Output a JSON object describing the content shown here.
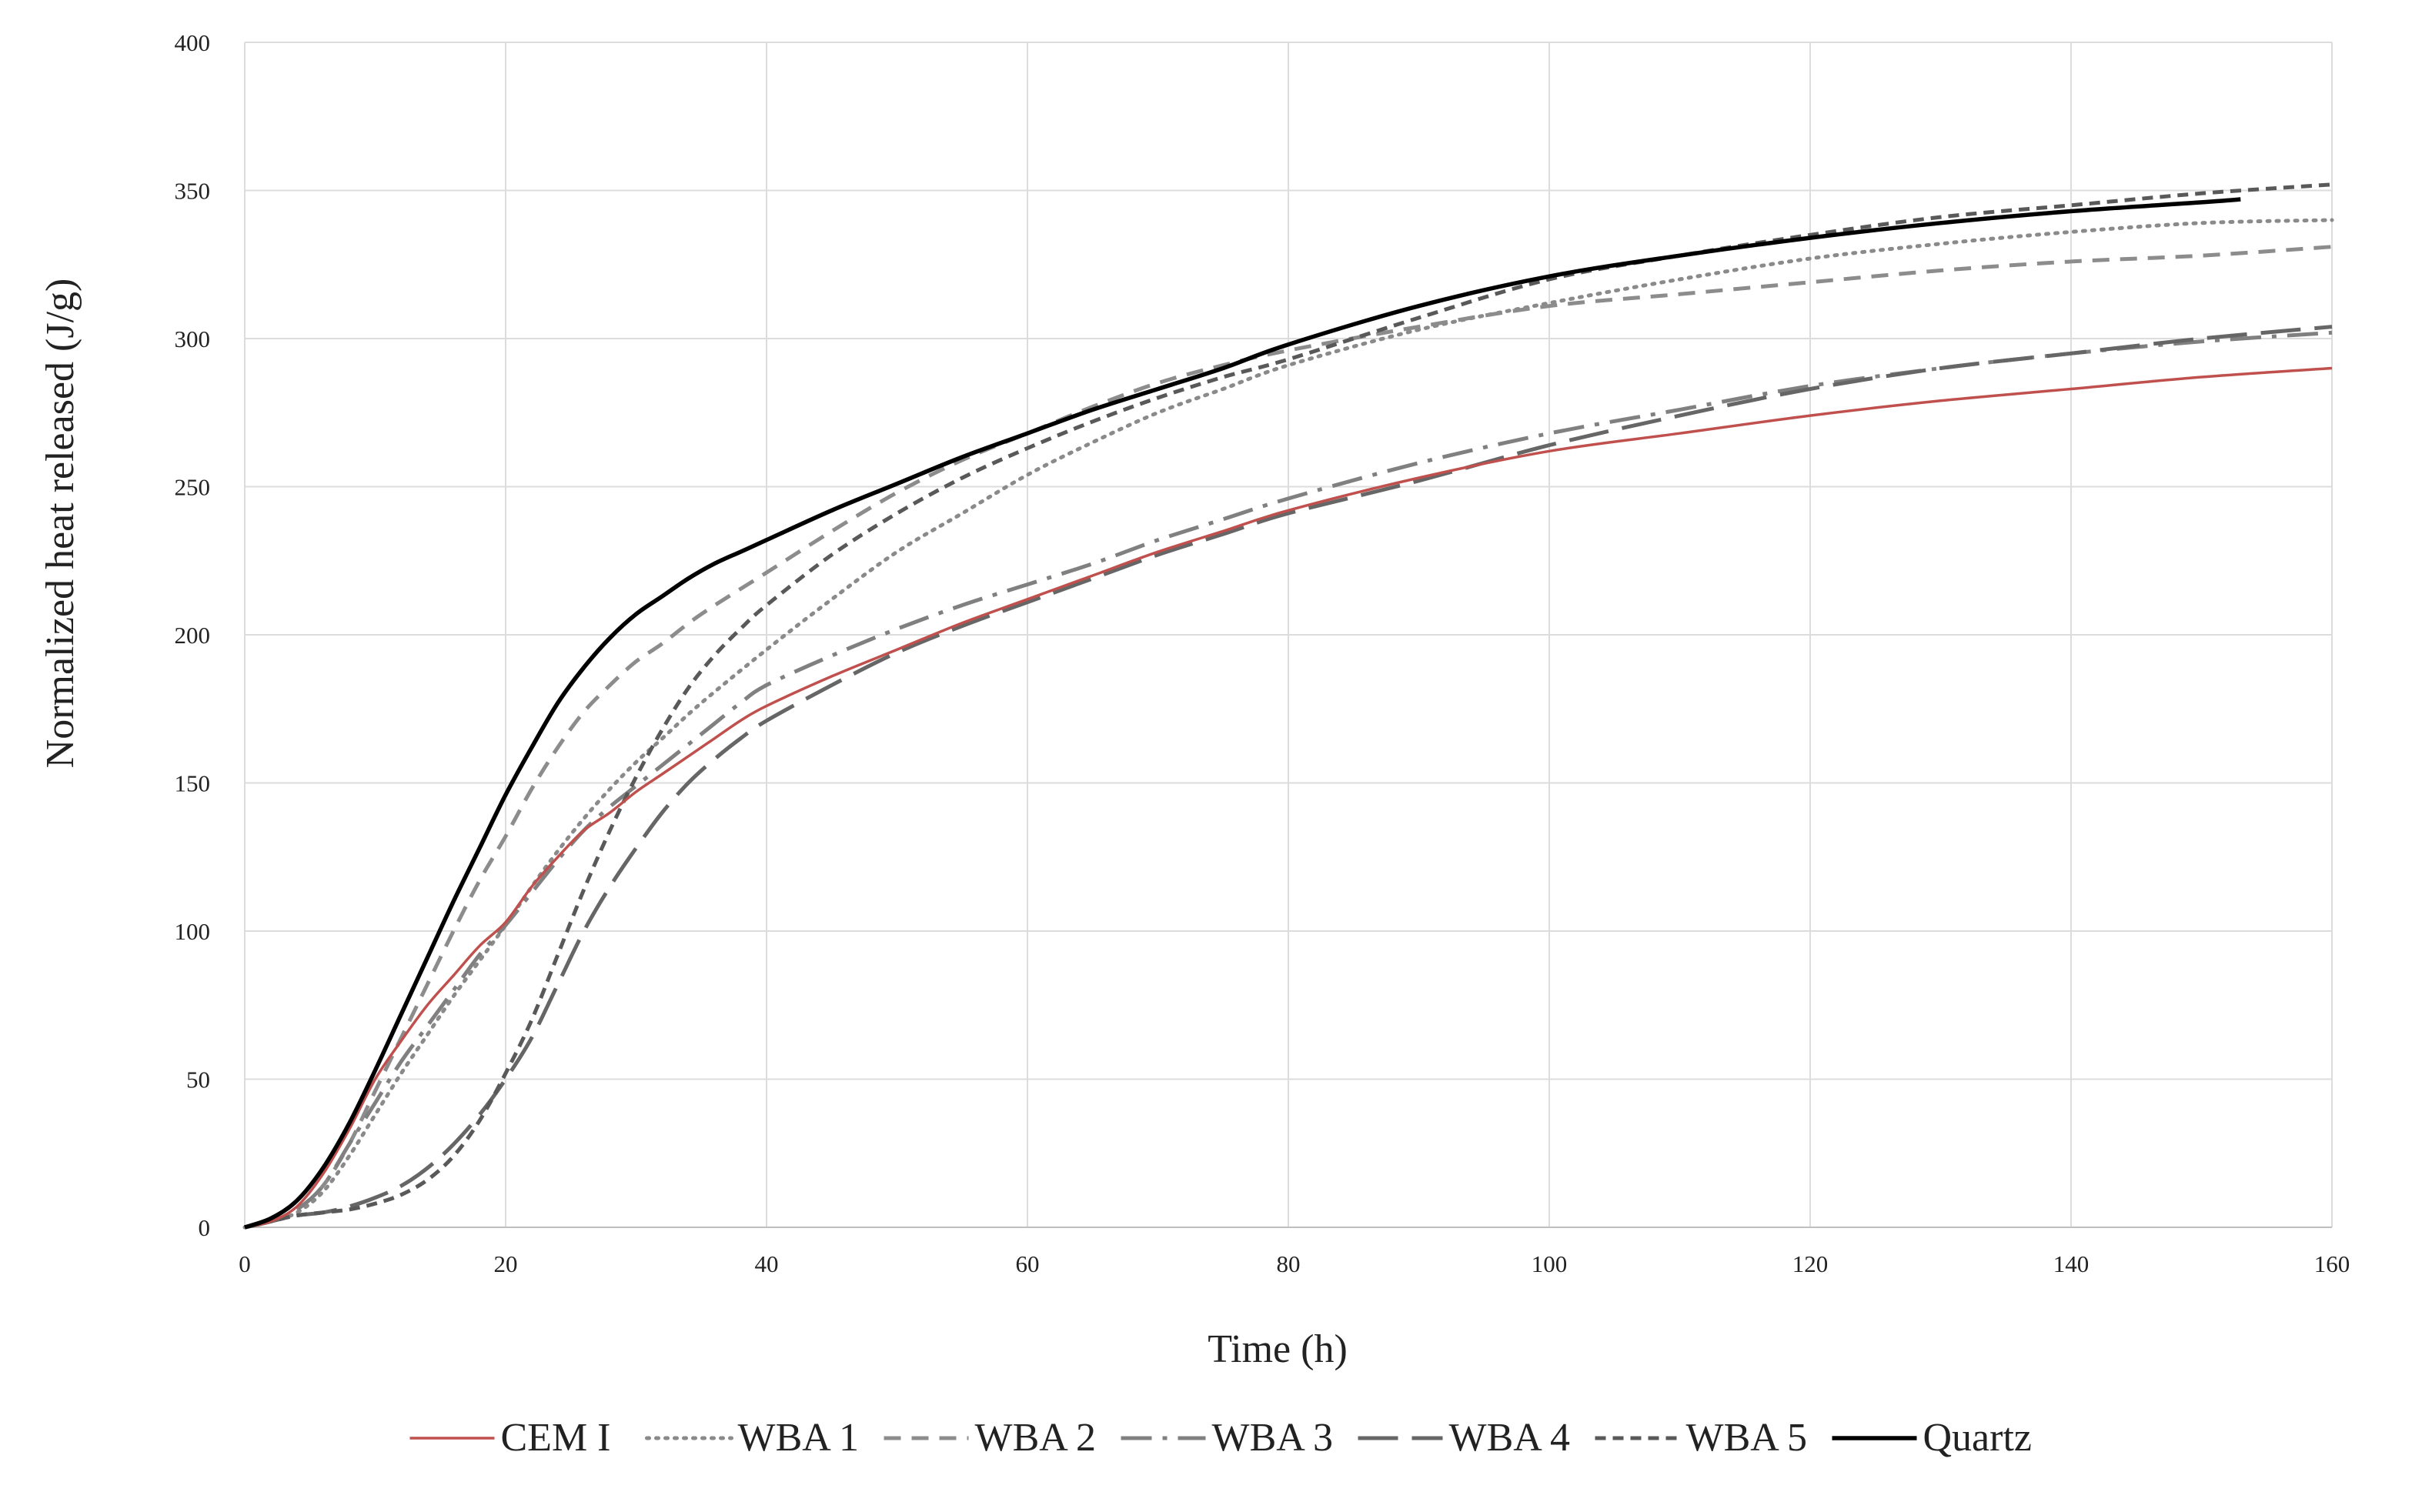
{
  "chart_data": {
    "type": "line",
    "title": "",
    "xlabel": "Time (h)",
    "ylabel": "Normalized heat released  (J/g)",
    "xlim": [
      0,
      160
    ],
    "ylim": [
      0,
      400
    ],
    "x_ticks": [
      "0",
      "20",
      "40",
      "60",
      "80",
      "100",
      "120",
      "140",
      "160"
    ],
    "y_ticks": [
      "0",
      "50",
      "100",
      "150",
      "200",
      "250",
      "300",
      "350",
      "400"
    ],
    "grid": true,
    "legend_position": "bottom",
    "series": [
      {
        "name": "CEM I",
        "color": "#c0504d",
        "dash": "solid",
        "points": [
          [
            0,
            0
          ],
          [
            2,
            2
          ],
          [
            4,
            7
          ],
          [
            6,
            18
          ],
          [
            8,
            33
          ],
          [
            10,
            50
          ],
          [
            12,
            63
          ],
          [
            14,
            75
          ],
          [
            16,
            85
          ],
          [
            18,
            95
          ],
          [
            20,
            103
          ],
          [
            22,
            115
          ],
          [
            24,
            125
          ],
          [
            26,
            134
          ],
          [
            28,
            140
          ],
          [
            30,
            147
          ],
          [
            32,
            153
          ],
          [
            34,
            159
          ],
          [
            36,
            165
          ],
          [
            38,
            171
          ],
          [
            40,
            176
          ],
          [
            45,
            186
          ],
          [
            50,
            195
          ],
          [
            55,
            204
          ],
          [
            60,
            212
          ],
          [
            65,
            220
          ],
          [
            70,
            228
          ],
          [
            75,
            235
          ],
          [
            80,
            242
          ],
          [
            90,
            253
          ],
          [
            100,
            262
          ],
          [
            110,
            268
          ],
          [
            120,
            274
          ],
          [
            130,
            279
          ],
          [
            140,
            283
          ],
          [
            150,
            287
          ],
          [
            160,
            290
          ]
        ]
      },
      {
        "name": "WBA 1",
        "color": "#8a8a8a",
        "dash": "dotted",
        "points": [
          [
            0,
            0
          ],
          [
            2,
            2
          ],
          [
            4,
            5
          ],
          [
            6,
            12
          ],
          [
            8,
            24
          ],
          [
            10,
            38
          ],
          [
            12,
            52
          ],
          [
            14,
            65
          ],
          [
            16,
            78
          ],
          [
            18,
            90
          ],
          [
            20,
            102
          ],
          [
            22,
            115
          ],
          [
            24,
            127
          ],
          [
            26,
            138
          ],
          [
            28,
            148
          ],
          [
            30,
            157
          ],
          [
            32,
            165
          ],
          [
            35,
            177
          ],
          [
            40,
            195
          ],
          [
            45,
            212
          ],
          [
            50,
            228
          ],
          [
            55,
            241
          ],
          [
            60,
            254
          ],
          [
            65,
            265
          ],
          [
            70,
            275
          ],
          [
            75,
            283
          ],
          [
            80,
            291
          ],
          [
            90,
            303
          ],
          [
            100,
            312
          ],
          [
            110,
            320
          ],
          [
            120,
            327
          ],
          [
            130,
            332
          ],
          [
            140,
            336
          ],
          [
            150,
            339
          ],
          [
            160,
            340
          ]
        ]
      },
      {
        "name": "WBA 2",
        "color": "#8c8c8c",
        "dash": "dash",
        "points": [
          [
            0,
            0
          ],
          [
            2,
            2
          ],
          [
            4,
            6
          ],
          [
            6,
            14
          ],
          [
            8,
            28
          ],
          [
            10,
            46
          ],
          [
            12,
            64
          ],
          [
            14,
            82
          ],
          [
            16,
            100
          ],
          [
            18,
            117
          ],
          [
            20,
            132
          ],
          [
            22,
            148
          ],
          [
            24,
            162
          ],
          [
            26,
            174
          ],
          [
            28,
            183
          ],
          [
            30,
            191
          ],
          [
            32,
            197
          ],
          [
            35,
            207
          ],
          [
            40,
            221
          ],
          [
            45,
            235
          ],
          [
            50,
            248
          ],
          [
            55,
            259
          ],
          [
            60,
            268
          ],
          [
            65,
            277
          ],
          [
            70,
            285
          ],
          [
            75,
            291
          ],
          [
            80,
            296
          ],
          [
            90,
            304
          ],
          [
            100,
            311
          ],
          [
            110,
            315
          ],
          [
            120,
            319
          ],
          [
            130,
            323
          ],
          [
            140,
            326
          ],
          [
            150,
            328
          ],
          [
            160,
            331
          ]
        ]
      },
      {
        "name": "WBA 3",
        "color": "#808080",
        "dash": "dashdot",
        "points": [
          [
            0,
            0
          ],
          [
            2,
            2
          ],
          [
            4,
            6
          ],
          [
            6,
            14
          ],
          [
            8,
            28
          ],
          [
            10,
            42
          ],
          [
            12,
            56
          ],
          [
            14,
            68
          ],
          [
            16,
            80
          ],
          [
            18,
            92
          ],
          [
            20,
            102
          ],
          [
            22,
            113
          ],
          [
            24,
            124
          ],
          [
            26,
            134
          ],
          [
            28,
            142
          ],
          [
            30,
            149
          ],
          [
            32,
            156
          ],
          [
            34,
            163
          ],
          [
            36,
            170
          ],
          [
            38,
            177
          ],
          [
            40,
            183
          ],
          [
            45,
            193
          ],
          [
            50,
            202
          ],
          [
            55,
            210
          ],
          [
            60,
            217
          ],
          [
            65,
            224
          ],
          [
            70,
            232
          ],
          [
            75,
            239
          ],
          [
            80,
            246
          ],
          [
            90,
            258
          ],
          [
            100,
            268
          ],
          [
            110,
            276
          ],
          [
            120,
            284
          ],
          [
            130,
            290
          ],
          [
            140,
            295
          ],
          [
            150,
            299
          ],
          [
            160,
            302
          ]
        ]
      },
      {
        "name": "WBA 4",
        "color": "#666666",
        "dash": "longdash",
        "points": [
          [
            0,
            0
          ],
          [
            2,
            2
          ],
          [
            4,
            4
          ],
          [
            6,
            5
          ],
          [
            8,
            7
          ],
          [
            10,
            10
          ],
          [
            12,
            14
          ],
          [
            14,
            20
          ],
          [
            16,
            28
          ],
          [
            18,
            38
          ],
          [
            20,
            50
          ],
          [
            22,
            64
          ],
          [
            24,
            82
          ],
          [
            26,
            100
          ],
          [
            28,
            115
          ],
          [
            30,
            128
          ],
          [
            32,
            140
          ],
          [
            34,
            150
          ],
          [
            36,
            158
          ],
          [
            38,
            165
          ],
          [
            40,
            171
          ],
          [
            45,
            183
          ],
          [
            50,
            194
          ],
          [
            55,
            203
          ],
          [
            60,
            211
          ],
          [
            65,
            219
          ],
          [
            70,
            227
          ],
          [
            75,
            234
          ],
          [
            80,
            241
          ],
          [
            90,
            252
          ],
          [
            100,
            264
          ],
          [
            110,
            274
          ],
          [
            120,
            283
          ],
          [
            130,
            290
          ],
          [
            140,
            295
          ],
          [
            150,
            300
          ],
          [
            160,
            304
          ]
        ]
      },
      {
        "name": "WBA 5",
        "color": "#595959",
        "dash": "shortdash",
        "points": [
          [
            0,
            0
          ],
          [
            2,
            2
          ],
          [
            4,
            4
          ],
          [
            6,
            5
          ],
          [
            8,
            6
          ],
          [
            10,
            8
          ],
          [
            12,
            11
          ],
          [
            14,
            16
          ],
          [
            16,
            24
          ],
          [
            18,
            36
          ],
          [
            20,
            52
          ],
          [
            22,
            70
          ],
          [
            24,
            92
          ],
          [
            26,
            114
          ],
          [
            28,
            134
          ],
          [
            30,
            152
          ],
          [
            32,
            168
          ],
          [
            34,
            182
          ],
          [
            36,
            193
          ],
          [
            38,
            202
          ],
          [
            40,
            210
          ],
          [
            45,
            227
          ],
          [
            50,
            241
          ],
          [
            55,
            253
          ],
          [
            60,
            263
          ],
          [
            65,
            272
          ],
          [
            70,
            280
          ],
          [
            75,
            287
          ],
          [
            80,
            293
          ],
          [
            90,
            307
          ],
          [
            100,
            320
          ],
          [
            110,
            328
          ],
          [
            120,
            335
          ],
          [
            130,
            341
          ],
          [
            140,
            345
          ],
          [
            150,
            349
          ],
          [
            160,
            352
          ]
        ]
      },
      {
        "name": "Quartz",
        "color": "#000000",
        "dash": "solid",
        "points": [
          [
            0,
            0
          ],
          [
            2,
            3
          ],
          [
            4,
            9
          ],
          [
            6,
            20
          ],
          [
            8,
            35
          ],
          [
            10,
            53
          ],
          [
            12,
            72
          ],
          [
            14,
            91
          ],
          [
            16,
            110
          ],
          [
            18,
            128
          ],
          [
            20,
            146
          ],
          [
            22,
            162
          ],
          [
            24,
            177
          ],
          [
            26,
            189
          ],
          [
            28,
            199
          ],
          [
            30,
            207
          ],
          [
            32,
            213
          ],
          [
            34,
            219
          ],
          [
            36,
            224
          ],
          [
            38,
            228
          ],
          [
            40,
            232
          ],
          [
            45,
            242
          ],
          [
            50,
            251
          ],
          [
            55,
            260
          ],
          [
            60,
            268
          ],
          [
            65,
            276
          ],
          [
            70,
            283
          ],
          [
            75,
            290
          ],
          [
            80,
            298
          ],
          [
            90,
            311
          ],
          [
            100,
            321
          ],
          [
            110,
            328
          ],
          [
            120,
            334
          ],
          [
            130,
            339
          ],
          [
            140,
            343
          ],
          [
            150,
            346
          ],
          [
            153,
            347
          ]
        ]
      }
    ]
  }
}
